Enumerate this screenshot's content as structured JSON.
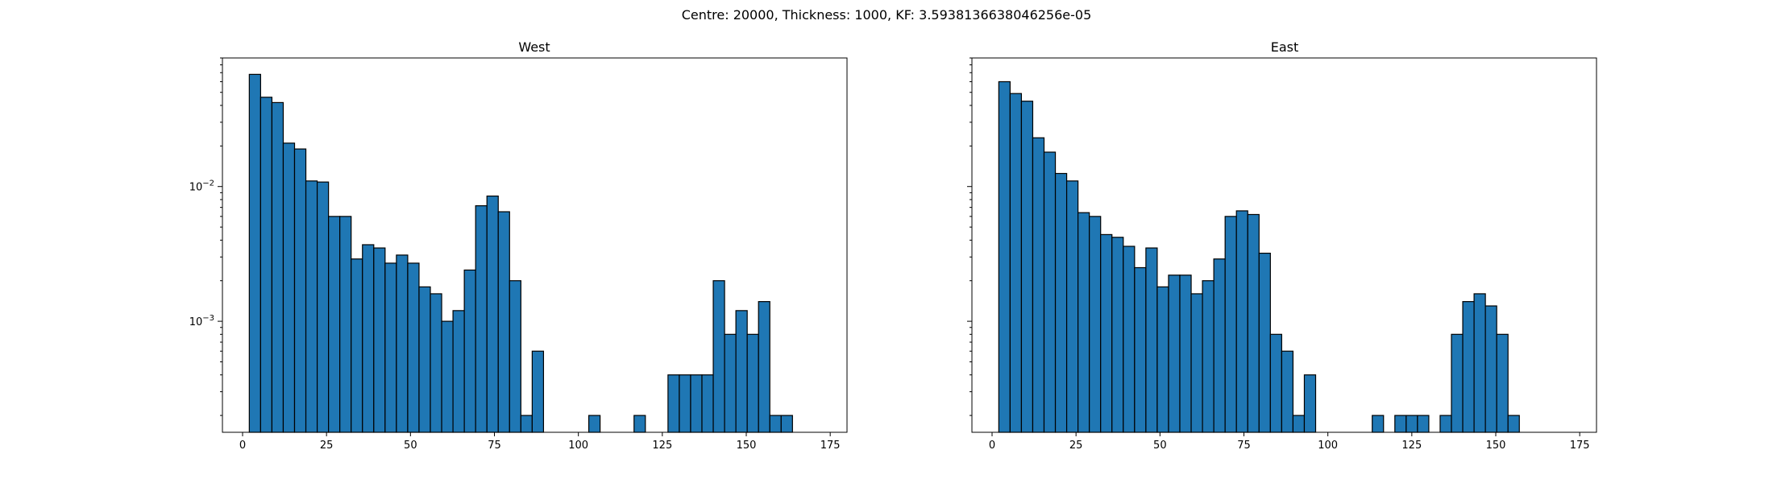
{
  "figure": {
    "suptitle": "Centre: 20000, Thickness: 1000, KF: 3.5938136638046256e-05"
  },
  "chart_data": [
    {
      "type": "bar",
      "title": "West",
      "xlabel": "",
      "ylabel": "",
      "xscale": "linear",
      "yscale": "log",
      "xlim": [
        -6,
        180
      ],
      "ylim": [
        0.00015,
        0.09
      ],
      "xticks": [
        0,
        25,
        50,
        75,
        100,
        125,
        150,
        175
      ],
      "yticks": [
        0.001,
        0.01
      ],
      "ytick_labels": [
        "10^-3",
        "10^-2"
      ],
      "bar_color": "#1f77b4",
      "bin_width": 3.37,
      "bin_start": 2.0,
      "values": [
        0.068,
        0.046,
        0.042,
        0.021,
        0.019,
        0.011,
        0.0108,
        0.006,
        0.006,
        0.0029,
        0.0037,
        0.0035,
        0.0027,
        0.0031,
        0.0027,
        0.0018,
        0.0016,
        0.001,
        0.0012,
        0.0024,
        0.0072,
        0.0085,
        0.0065,
        0.002,
        0.0002,
        0.0006,
        0,
        0,
        0,
        0,
        0.0002,
        0,
        0,
        0,
        0.0002,
        0,
        0,
        0.0004,
        0.0004,
        0.0004,
        0.0004,
        0.002,
        0.0008,
        0.0012,
        0.0008,
        0.0014,
        0.0002,
        0.0002
      ]
    },
    {
      "type": "bar",
      "title": "East",
      "xlabel": "",
      "ylabel": "",
      "xscale": "linear",
      "yscale": "log",
      "xlim": [
        -6,
        180
      ],
      "ylim": [
        0.00015,
        0.09
      ],
      "xticks": [
        0,
        25,
        50,
        75,
        100,
        125,
        150,
        175
      ],
      "yticks": [
        0.001,
        0.01
      ],
      "ytick_labels": [
        "",
        ""
      ],
      "bar_color": "#1f77b4",
      "bin_width": 3.37,
      "bin_start": 2.0,
      "values": [
        0.06,
        0.049,
        0.043,
        0.023,
        0.018,
        0.0125,
        0.011,
        0.0064,
        0.006,
        0.0044,
        0.0042,
        0.0036,
        0.0025,
        0.0035,
        0.0018,
        0.0022,
        0.0022,
        0.0016,
        0.002,
        0.0029,
        0.006,
        0.0066,
        0.0062,
        0.0032,
        0.0008,
        0.0006,
        0.0002,
        0.0004,
        0,
        0,
        0,
        0,
        0,
        0.0002,
        0,
        0.0002,
        0.0002,
        0.0002,
        0,
        0.0002,
        0.0008,
        0.0014,
        0.0016,
        0.0013,
        0.0008,
        0.0002
      ]
    }
  ]
}
